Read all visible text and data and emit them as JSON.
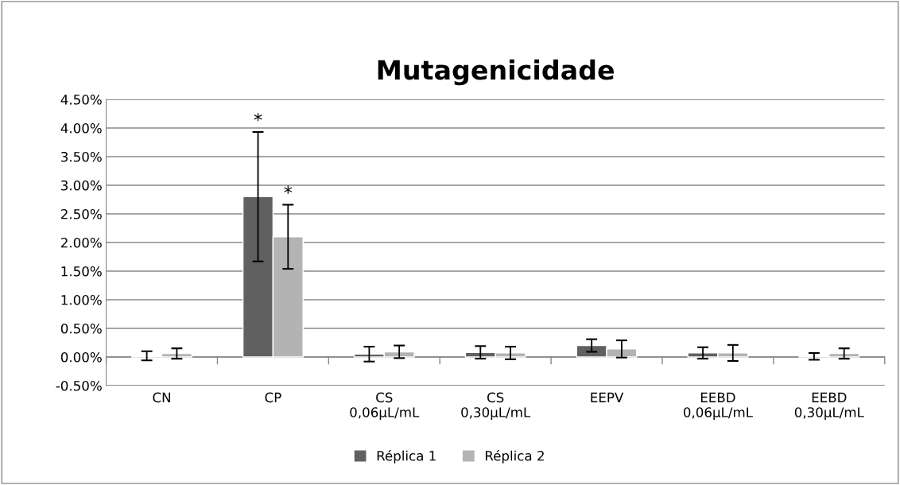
{
  "chart_data": {
    "type": "bar",
    "title": "Mutagenicidade",
    "categories": [
      "CN",
      "CP",
      "CS\n0,06µL/mL",
      "CS\n0,30µL/mL",
      "EEPV",
      "EEBD\n0,06µL/mL",
      "EEBD\n0,30µL/mL"
    ],
    "series": [
      {
        "name": "Réplica 1",
        "color": "#606060",
        "values": [
          0.02,
          2.8,
          0.05,
          0.08,
          0.2,
          0.07,
          0.01
        ],
        "errors": [
          0.08,
          1.13,
          0.13,
          0.11,
          0.11,
          0.1,
          0.06
        ]
      },
      {
        "name": "Réplica 2",
        "color": "#b3b3b3",
        "values": [
          0.06,
          2.1,
          0.09,
          0.07,
          0.14,
          0.07,
          0.06
        ],
        "errors": [
          0.09,
          0.56,
          0.11,
          0.11,
          0.15,
          0.14,
          0.09
        ]
      }
    ],
    "ylim": [
      -0.5,
      4.5
    ],
    "yticks": [
      {
        "value": -0.5,
        "label": "-0.50%"
      },
      {
        "value": 0,
        "label": "0.00%"
      },
      {
        "value": 0.5,
        "label": "0.50%"
      },
      {
        "value": 1,
        "label": "1.00%"
      },
      {
        "value": 1.5,
        "label": "1.50%"
      },
      {
        "value": 2,
        "label": "2.00%"
      },
      {
        "value": 2.5,
        "label": "2.50%"
      },
      {
        "value": 3,
        "label": "3.00%"
      },
      {
        "value": 3.5,
        "label": "3.50%"
      },
      {
        "value": 4,
        "label": "4.00%"
      },
      {
        "value": 4.5,
        "label": "4.50%"
      }
    ],
    "annotations": [
      "*",
      "*"
    ],
    "grid": "y",
    "legend": "bottom"
  }
}
